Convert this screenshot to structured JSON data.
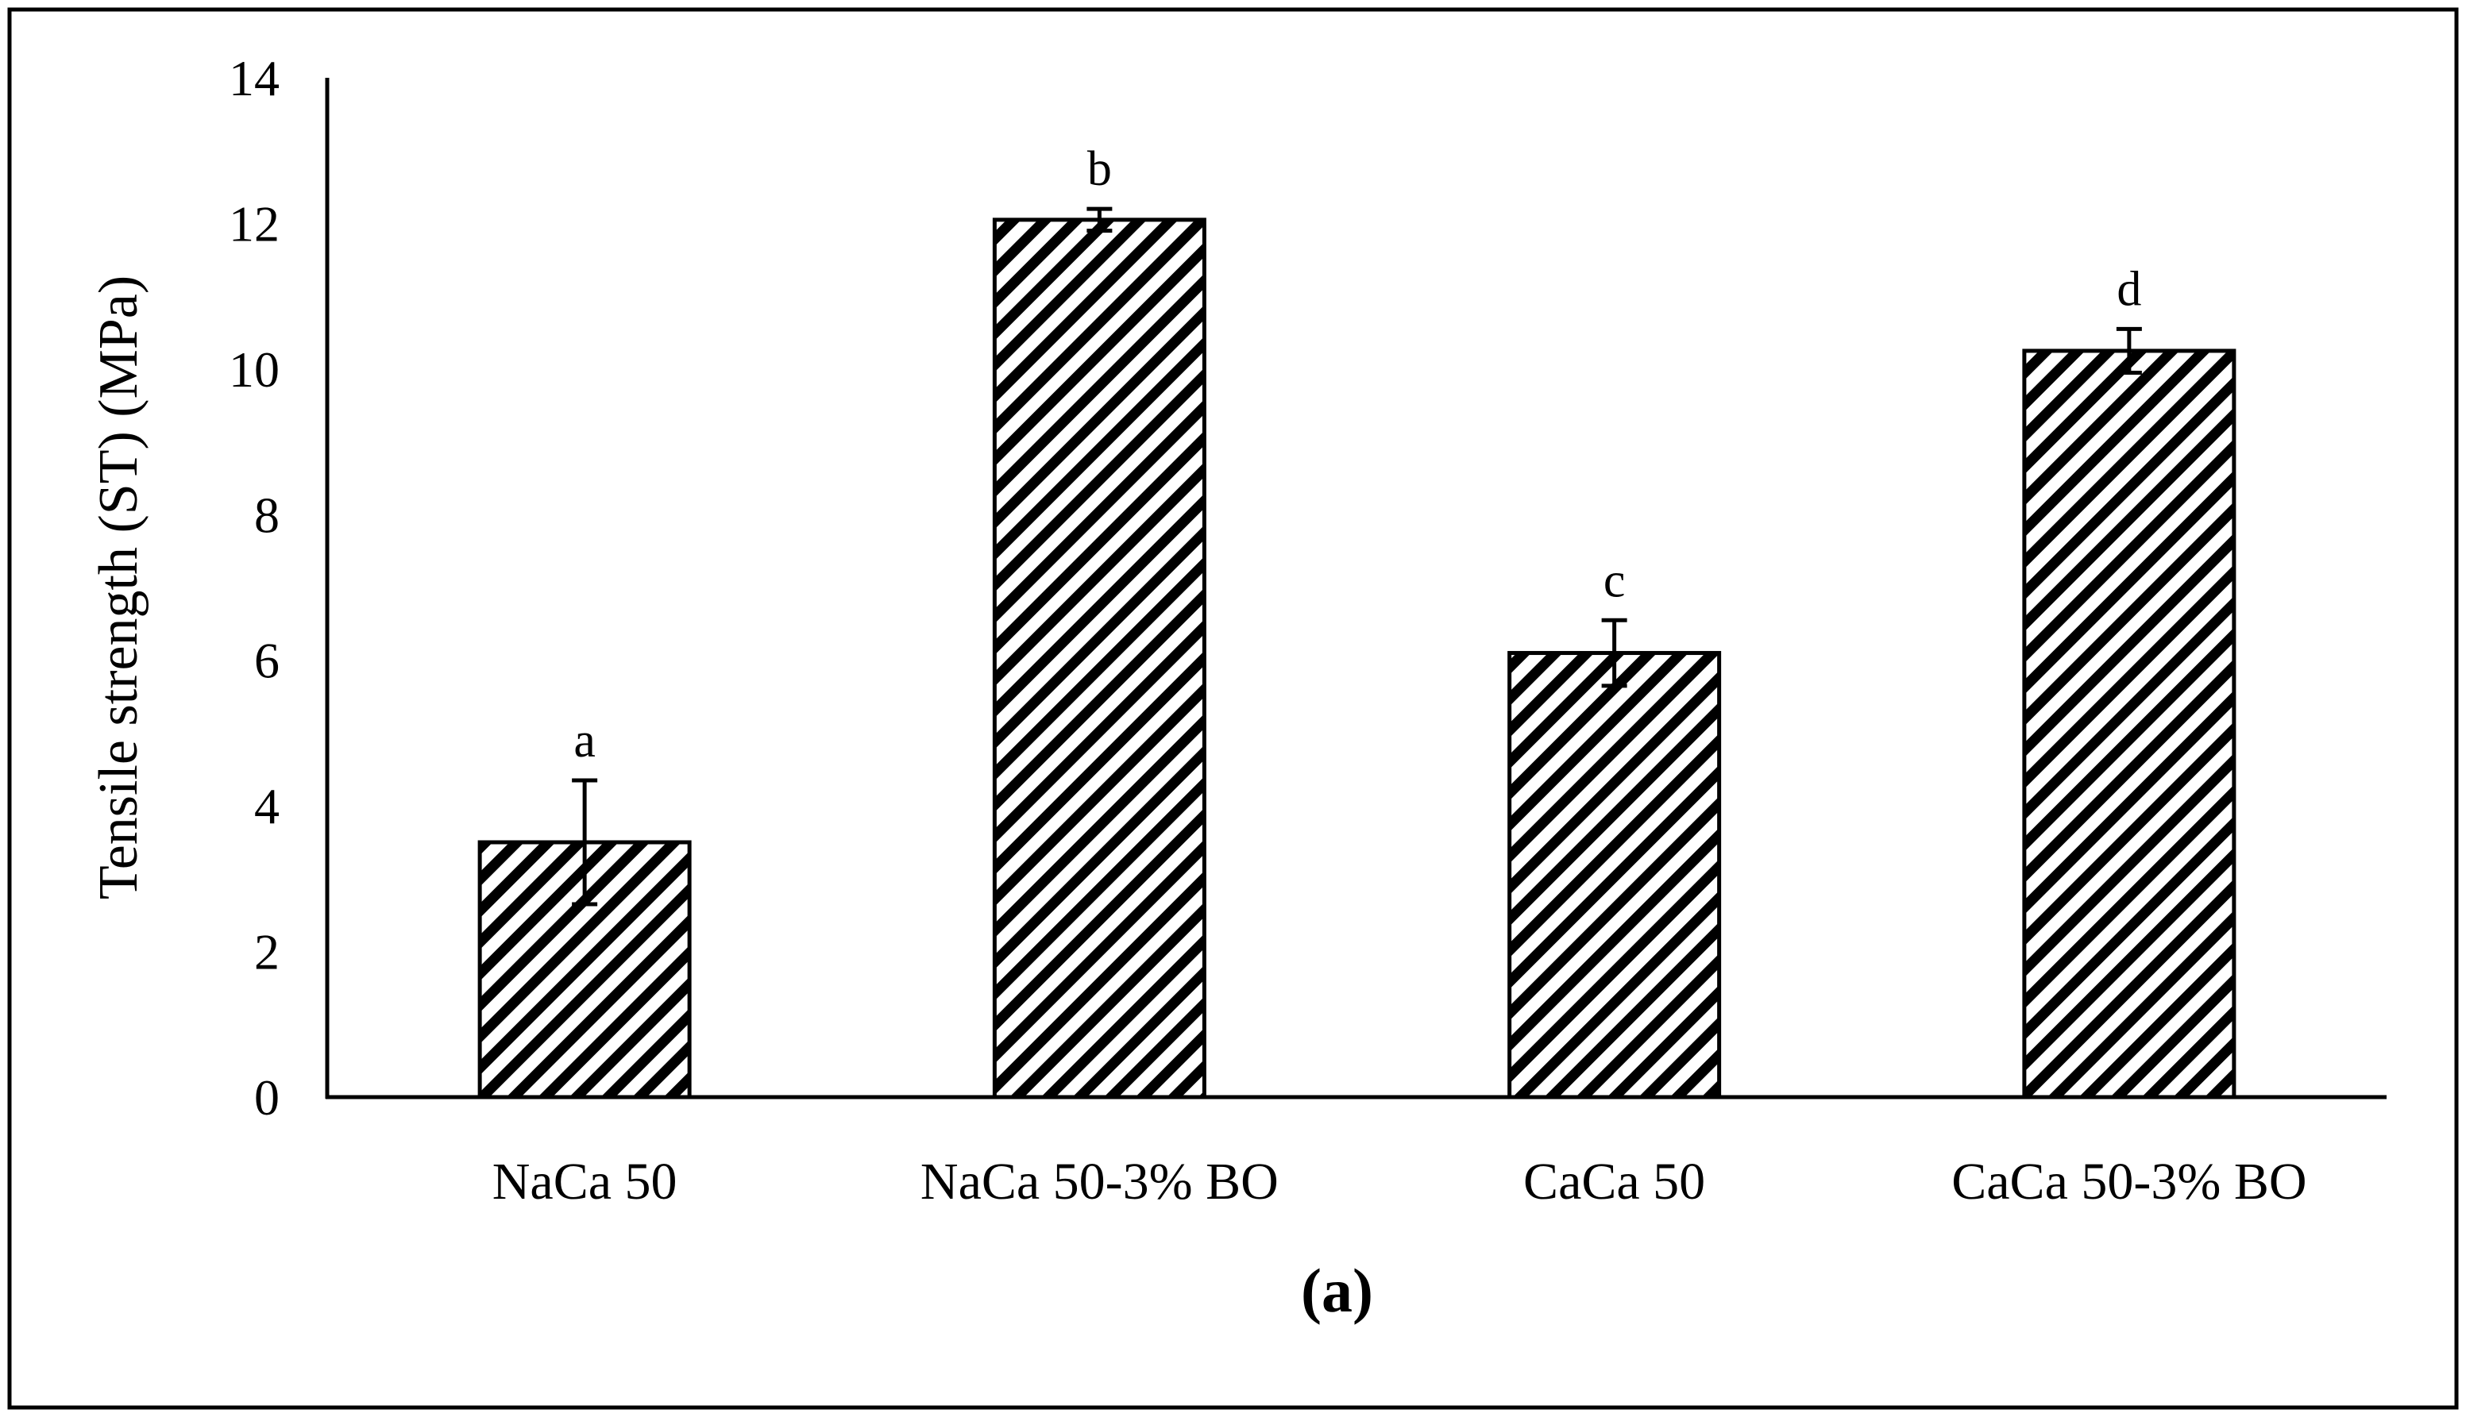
{
  "chart_data": {
    "type": "bar",
    "title": "",
    "panel_label": "(a)",
    "xlabel": "",
    "ylabel": "Tensile strength (ST) (MPa)",
    "ylim": [
      0,
      14
    ],
    "yticks": [
      0,
      2,
      4,
      6,
      8,
      10,
      12,
      14
    ],
    "grid": false,
    "legend": "none",
    "categories": [
      "NaCa 50",
      "NaCa 50-3% BO",
      "CaCa 50",
      "CaCa 50-3% BO"
    ],
    "series": [
      {
        "name": "Tensile strength",
        "values": [
          3.5,
          12.05,
          6.1,
          10.25
        ],
        "error": [
          0.85,
          0.15,
          0.45,
          0.3
        ],
        "significance": [
          "a",
          "b",
          "c",
          "d"
        ],
        "pattern": "diagonal-stripes",
        "stroke": "#000000",
        "fill": "#ffffff"
      }
    ]
  }
}
